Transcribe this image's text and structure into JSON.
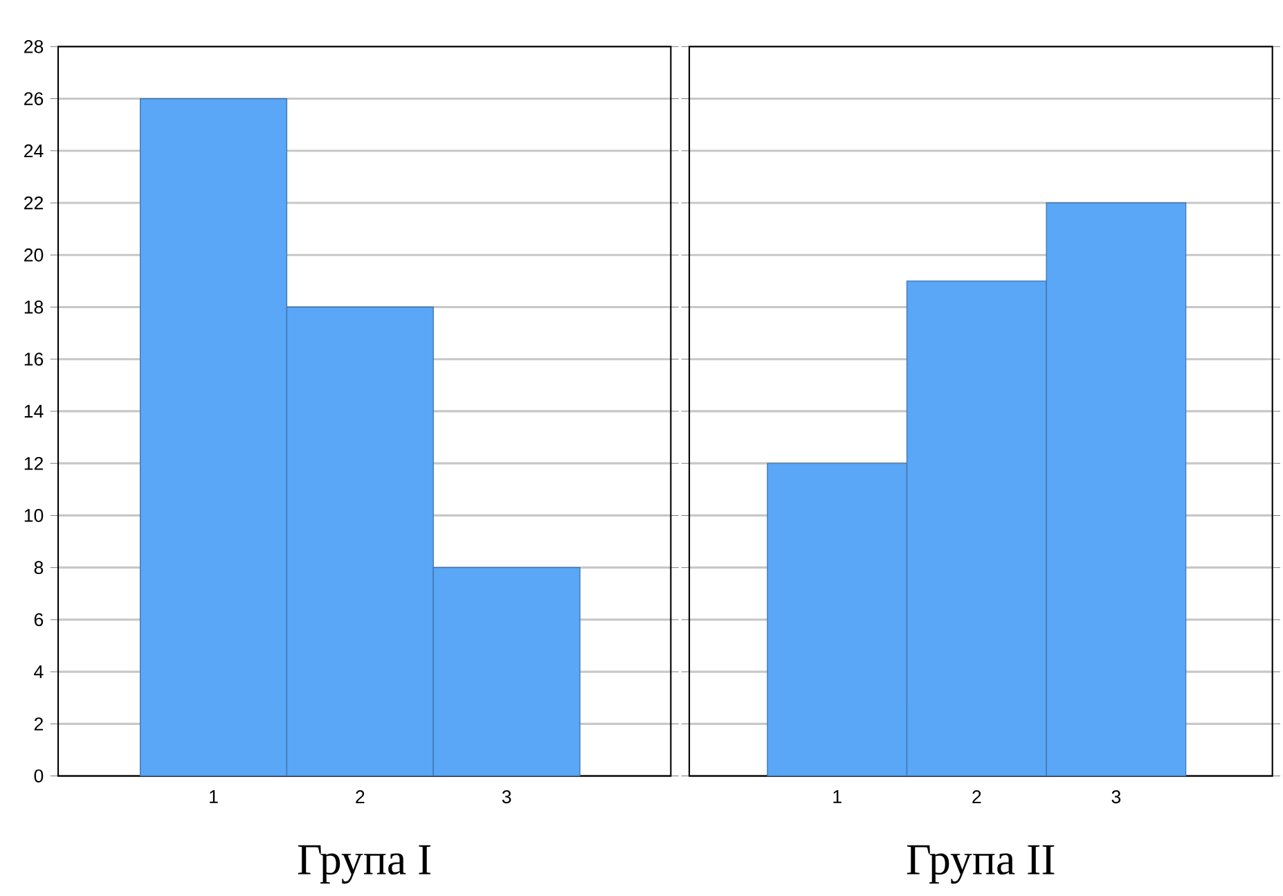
{
  "chart_data": [
    {
      "type": "bar",
      "title": "Група I",
      "categories": [
        "1",
        "2",
        "3"
      ],
      "values": [
        26,
        18,
        8
      ],
      "color": "#5aa6f7",
      "ylim": [
        0,
        28
      ],
      "yticks": [
        0,
        2,
        4,
        6,
        8,
        10,
        12,
        14,
        16,
        18,
        20,
        22,
        24,
        26,
        28
      ],
      "grid": "y"
    },
    {
      "type": "bar",
      "title": "Група II",
      "categories": [
        "1",
        "2",
        "3"
      ],
      "values": [
        12,
        19,
        22
      ],
      "color": "#5aa6f7",
      "ylim": [
        0,
        28
      ],
      "yticks": [
        0,
        2,
        4,
        6,
        8,
        10,
        12,
        14,
        16,
        18,
        20,
        22,
        24,
        26,
        28
      ],
      "grid": "y",
      "tick_labels": "x"
    }
  ]
}
